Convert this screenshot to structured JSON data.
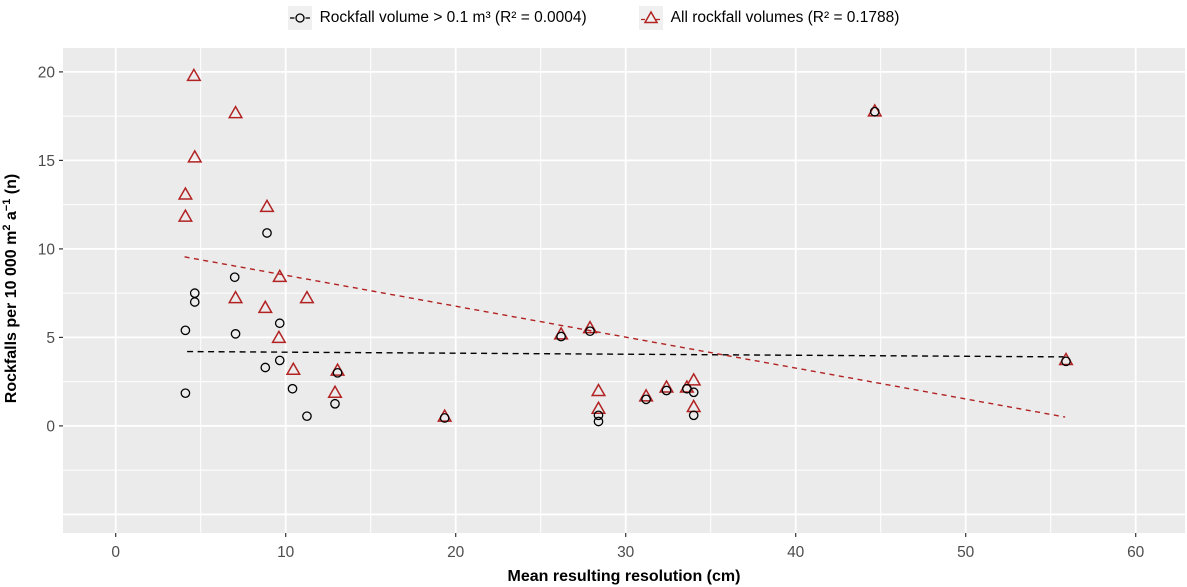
{
  "chart_data": {
    "type": "scatter",
    "title": "",
    "xlabel": "Mean resulting resolution (cm)",
    "ylabel": "Rockfalls per 10 000 m² a⁻¹ (n)",
    "ylabel_rich": [
      {
        "text": "Rockfalls per 10 000 m",
        "sup": false
      },
      {
        "text": "2",
        "sup": true
      },
      {
        "text": " a",
        "sup": false
      },
      {
        "text": "−1",
        "sup": true
      },
      {
        "text": " (n)",
        "sup": false
      }
    ],
    "xlim": [
      -3.1,
      62.9
    ],
    "ylim": [
      -6.05,
      21.35
    ],
    "x_ticks": [
      0,
      10,
      20,
      30,
      40,
      50,
      60
    ],
    "y_ticks": [
      0,
      5,
      10,
      15,
      20
    ],
    "x_minor": [
      5,
      15,
      25,
      35,
      45,
      55
    ],
    "y_minor": [
      -2.5,
      2.5,
      7.5,
      12.5,
      17.5
    ],
    "y_major_unlabeled": [
      -5
    ],
    "grid": true,
    "legend_position": "top",
    "colors": {
      "panel_bg": "#ebebeb",
      "grid": "#ffffff",
      "tick_text": "#4d4d4d",
      "axis_text": "#000000",
      "red": "#b22222",
      "black": "#000000"
    },
    "series": [
      {
        "name": "Rockfall volume > 0.1 m³ (R² = 0.0004)",
        "marker": "circle",
        "color": "#000000",
        "r_squared": 0.0004,
        "trend": {
          "x1": 4.2,
          "y1": 4.2,
          "x2": 55.9,
          "y2": 3.9,
          "style": "dashed"
        },
        "points": [
          [
            4.1,
            5.4
          ],
          [
            4.1,
            1.85
          ],
          [
            4.65,
            7.5
          ],
          [
            4.65,
            7.0
          ],
          [
            7.0,
            8.4
          ],
          [
            7.05,
            5.2
          ],
          [
            8.8,
            3.3
          ],
          [
            8.9,
            10.9
          ],
          [
            9.65,
            5.8
          ],
          [
            9.65,
            3.7
          ],
          [
            10.4,
            2.1
          ],
          [
            11.25,
            0.55
          ],
          [
            12.9,
            1.25
          ],
          [
            13.05,
            3.0
          ],
          [
            19.35,
            0.45
          ],
          [
            26.2,
            5.05
          ],
          [
            27.9,
            5.35
          ],
          [
            28.4,
            0.6
          ],
          [
            28.4,
            0.25
          ],
          [
            31.2,
            1.5
          ],
          [
            32.4,
            2.0
          ],
          [
            33.6,
            2.1
          ],
          [
            34.0,
            1.9
          ],
          [
            34.0,
            0.6
          ],
          [
            44.65,
            17.75
          ],
          [
            55.9,
            3.65
          ]
        ]
      },
      {
        "name": "All rockfall volumes (R² = 0.1788)",
        "marker": "triangle",
        "color": "#b22222",
        "r_squared": 0.1788,
        "trend": {
          "x1": 4.05,
          "y1": 9.55,
          "x2": 55.85,
          "y2": 0.5,
          "style": "dashed"
        },
        "points": [
          [
            4.6,
            19.8
          ],
          [
            7.05,
            17.7
          ],
          [
            4.65,
            15.2
          ],
          [
            4.1,
            13.1
          ],
          [
            4.1,
            11.85
          ],
          [
            8.9,
            12.4
          ],
          [
            9.65,
            8.45
          ],
          [
            7.05,
            7.25
          ],
          [
            11.25,
            7.25
          ],
          [
            8.8,
            6.7
          ],
          [
            9.6,
            5.0
          ],
          [
            10.45,
            3.2
          ],
          [
            13.05,
            3.15
          ],
          [
            12.9,
            1.9
          ],
          [
            19.35,
            0.55
          ],
          [
            26.2,
            5.2
          ],
          [
            27.9,
            5.55
          ],
          [
            28.4,
            2.0
          ],
          [
            28.4,
            1.0
          ],
          [
            31.2,
            1.7
          ],
          [
            32.4,
            2.2
          ],
          [
            33.6,
            2.2
          ],
          [
            34.0,
            2.6
          ],
          [
            34.0,
            1.1
          ],
          [
            44.65,
            17.8
          ],
          [
            55.9,
            3.75
          ]
        ]
      }
    ]
  }
}
